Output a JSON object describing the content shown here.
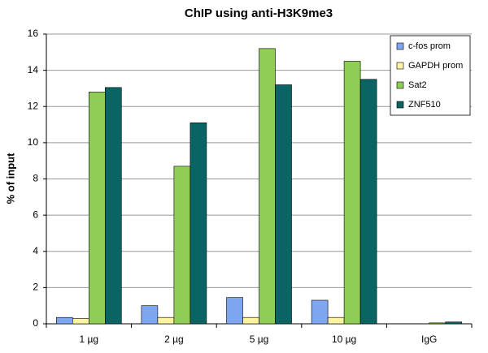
{
  "chart_data": {
    "type": "bar",
    "title": "ChIP using anti-H3K9me3",
    "y_label": "% of input",
    "categories": [
      "1 µg",
      "2 µg",
      "5 µg",
      "10 µg",
      "IgG"
    ],
    "series": [
      {
        "name": "c-fos prom",
        "color": "#7fa6f0",
        "values": [
          0.35,
          1.0,
          1.45,
          1.3,
          0.0
        ]
      },
      {
        "name": "GAPDH prom",
        "color": "#fff4a3",
        "values": [
          0.3,
          0.35,
          0.35,
          0.35,
          0.0
        ]
      },
      {
        "name": "Sat2",
        "color": "#8fcd55",
        "values": [
          12.8,
          8.7,
          15.2,
          14.5,
          0.05
        ]
      },
      {
        "name": "ZNF510",
        "color": "#0a6464",
        "values": [
          13.05,
          11.1,
          13.2,
          13.5,
          0.1
        ]
      }
    ],
    "ylim": [
      0,
      16
    ],
    "yticks": [
      0,
      2,
      4,
      6,
      8,
      10,
      12,
      14,
      16
    ],
    "grid": true,
    "legend": "top-right"
  }
}
